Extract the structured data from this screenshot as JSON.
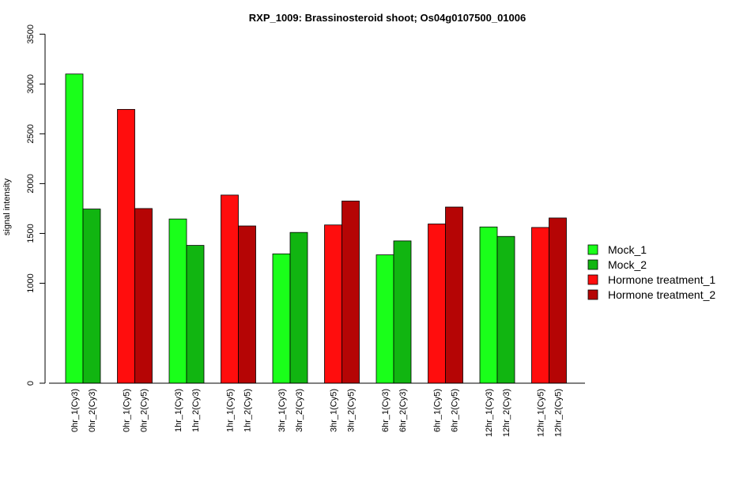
{
  "chart_data": {
    "type": "bar",
    "title": "RXP_1009: Brassinosteroid shoot; Os04g0107500_01006",
    "xlabel": "",
    "ylabel": "signal intensity",
    "y_ticks": [
      0,
      1000,
      1500,
      2000,
      2500,
      3000,
      3500
    ],
    "y_tick_labels": [
      "0",
      "1000",
      "1500",
      "2000",
      "2500",
      "3000",
      "3500"
    ],
    "categories": [
      "0hr_1(Cy3)",
      "0hr_2(Cy3)",
      "0hr_1(Cy5)",
      "0hr_2(Cy5)",
      "1hr_1(Cy3)",
      "1hr_2(Cy3)",
      "1hr_1(Cy5)",
      "1hr_2(Cy5)",
      "3hr_1(Cy3)",
      "3hr_2(Cy3)",
      "3hr_1(Cy5)",
      "3hr_2(Cy5)",
      "6hr_1(Cy3)",
      "6hr_2(Cy3)",
      "6hr_1(Cy5)",
      "6hr_2(Cy5)",
      "12hr_1(Cy3)",
      "12hr_2(Cy3)",
      "12hr_1(Cy5)",
      "12hr_2(Cy5)"
    ],
    "values": [
      3100,
      1745,
      2745,
      1750,
      1645,
      1380,
      1885,
      1575,
      1295,
      1510,
      1585,
      1825,
      1285,
      1425,
      1595,
      1765,
      1565,
      1470,
      1560,
      1655
    ],
    "bar_series_index": [
      0,
      1,
      2,
      3,
      0,
      1,
      2,
      3,
      0,
      1,
      2,
      3,
      0,
      1,
      2,
      3,
      0,
      1,
      2,
      3
    ],
    "series": [
      {
        "name": "Mock_1",
        "color": "#1aff1a"
      },
      {
        "name": "Mock_2",
        "color": "#11b511"
      },
      {
        "name": "Hormone treatment_1",
        "color": "#ff0d0d"
      },
      {
        "name": "Hormone treatment_2",
        "color": "#b50505"
      }
    ],
    "legend_position": "right",
    "grid": false
  }
}
